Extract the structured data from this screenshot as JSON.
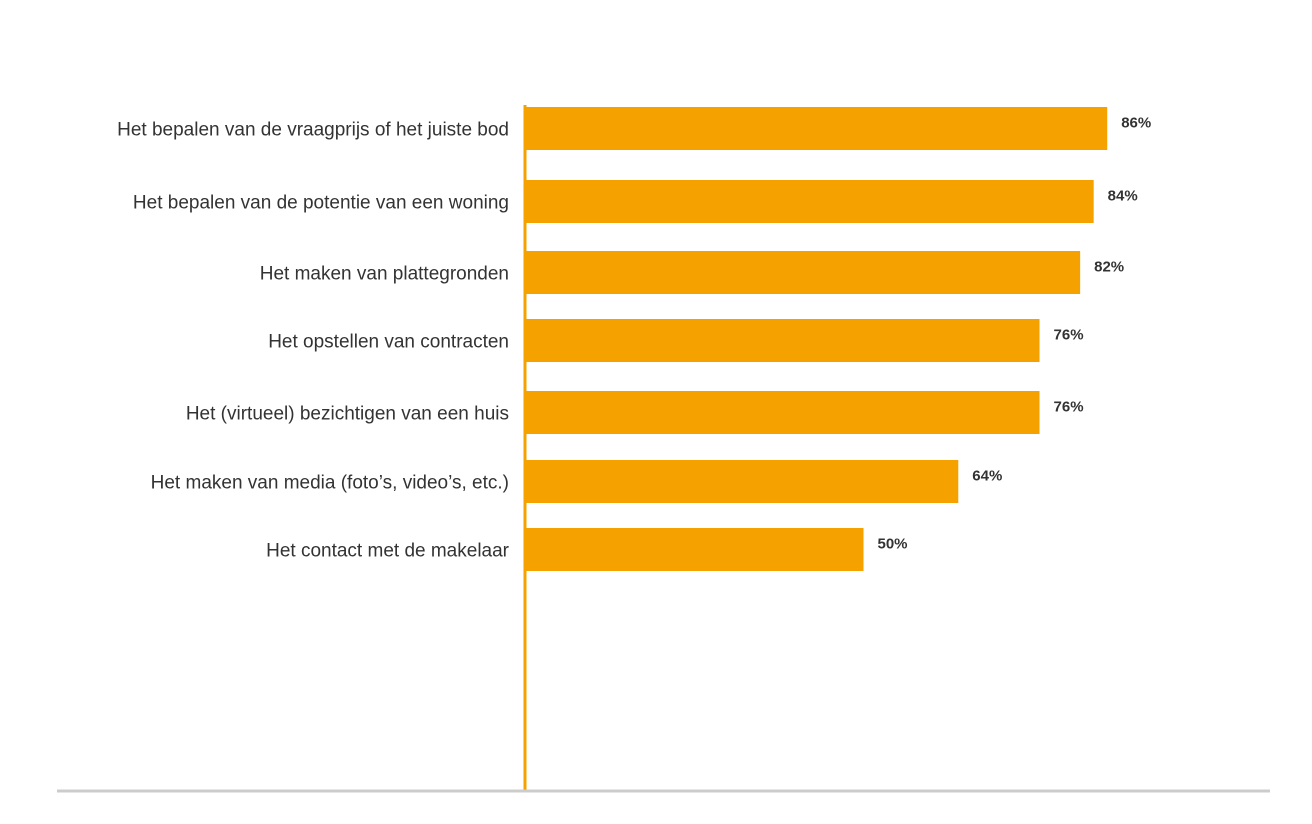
{
  "chart_data": {
    "type": "bar",
    "orientation": "horizontal",
    "categories": [
      "Het bepalen van de vraagprijs of het juiste bod",
      "Het bepalen van de potentie van een woning",
      "Het maken van plattegronden",
      "Het opstellen van contracten",
      "Het (virtueel) bezichtigen van een huis",
      "Het maken van media (foto’s, video’s, etc.)",
      "Het contact met de makelaar"
    ],
    "values": [
      86,
      84,
      82,
      76,
      76,
      64,
      50
    ],
    "value_labels": [
      "86%",
      "84%",
      "82%",
      "76%",
      "76%",
      "64%",
      "50%"
    ],
    "unit": "%",
    "xlim": [
      0,
      100
    ],
    "grid": false,
    "legend": "none",
    "colors": {
      "bar": "#F5A100",
      "axis": "#F5A100",
      "baseline": "#CCCCCC",
      "text": "#333333"
    }
  }
}
